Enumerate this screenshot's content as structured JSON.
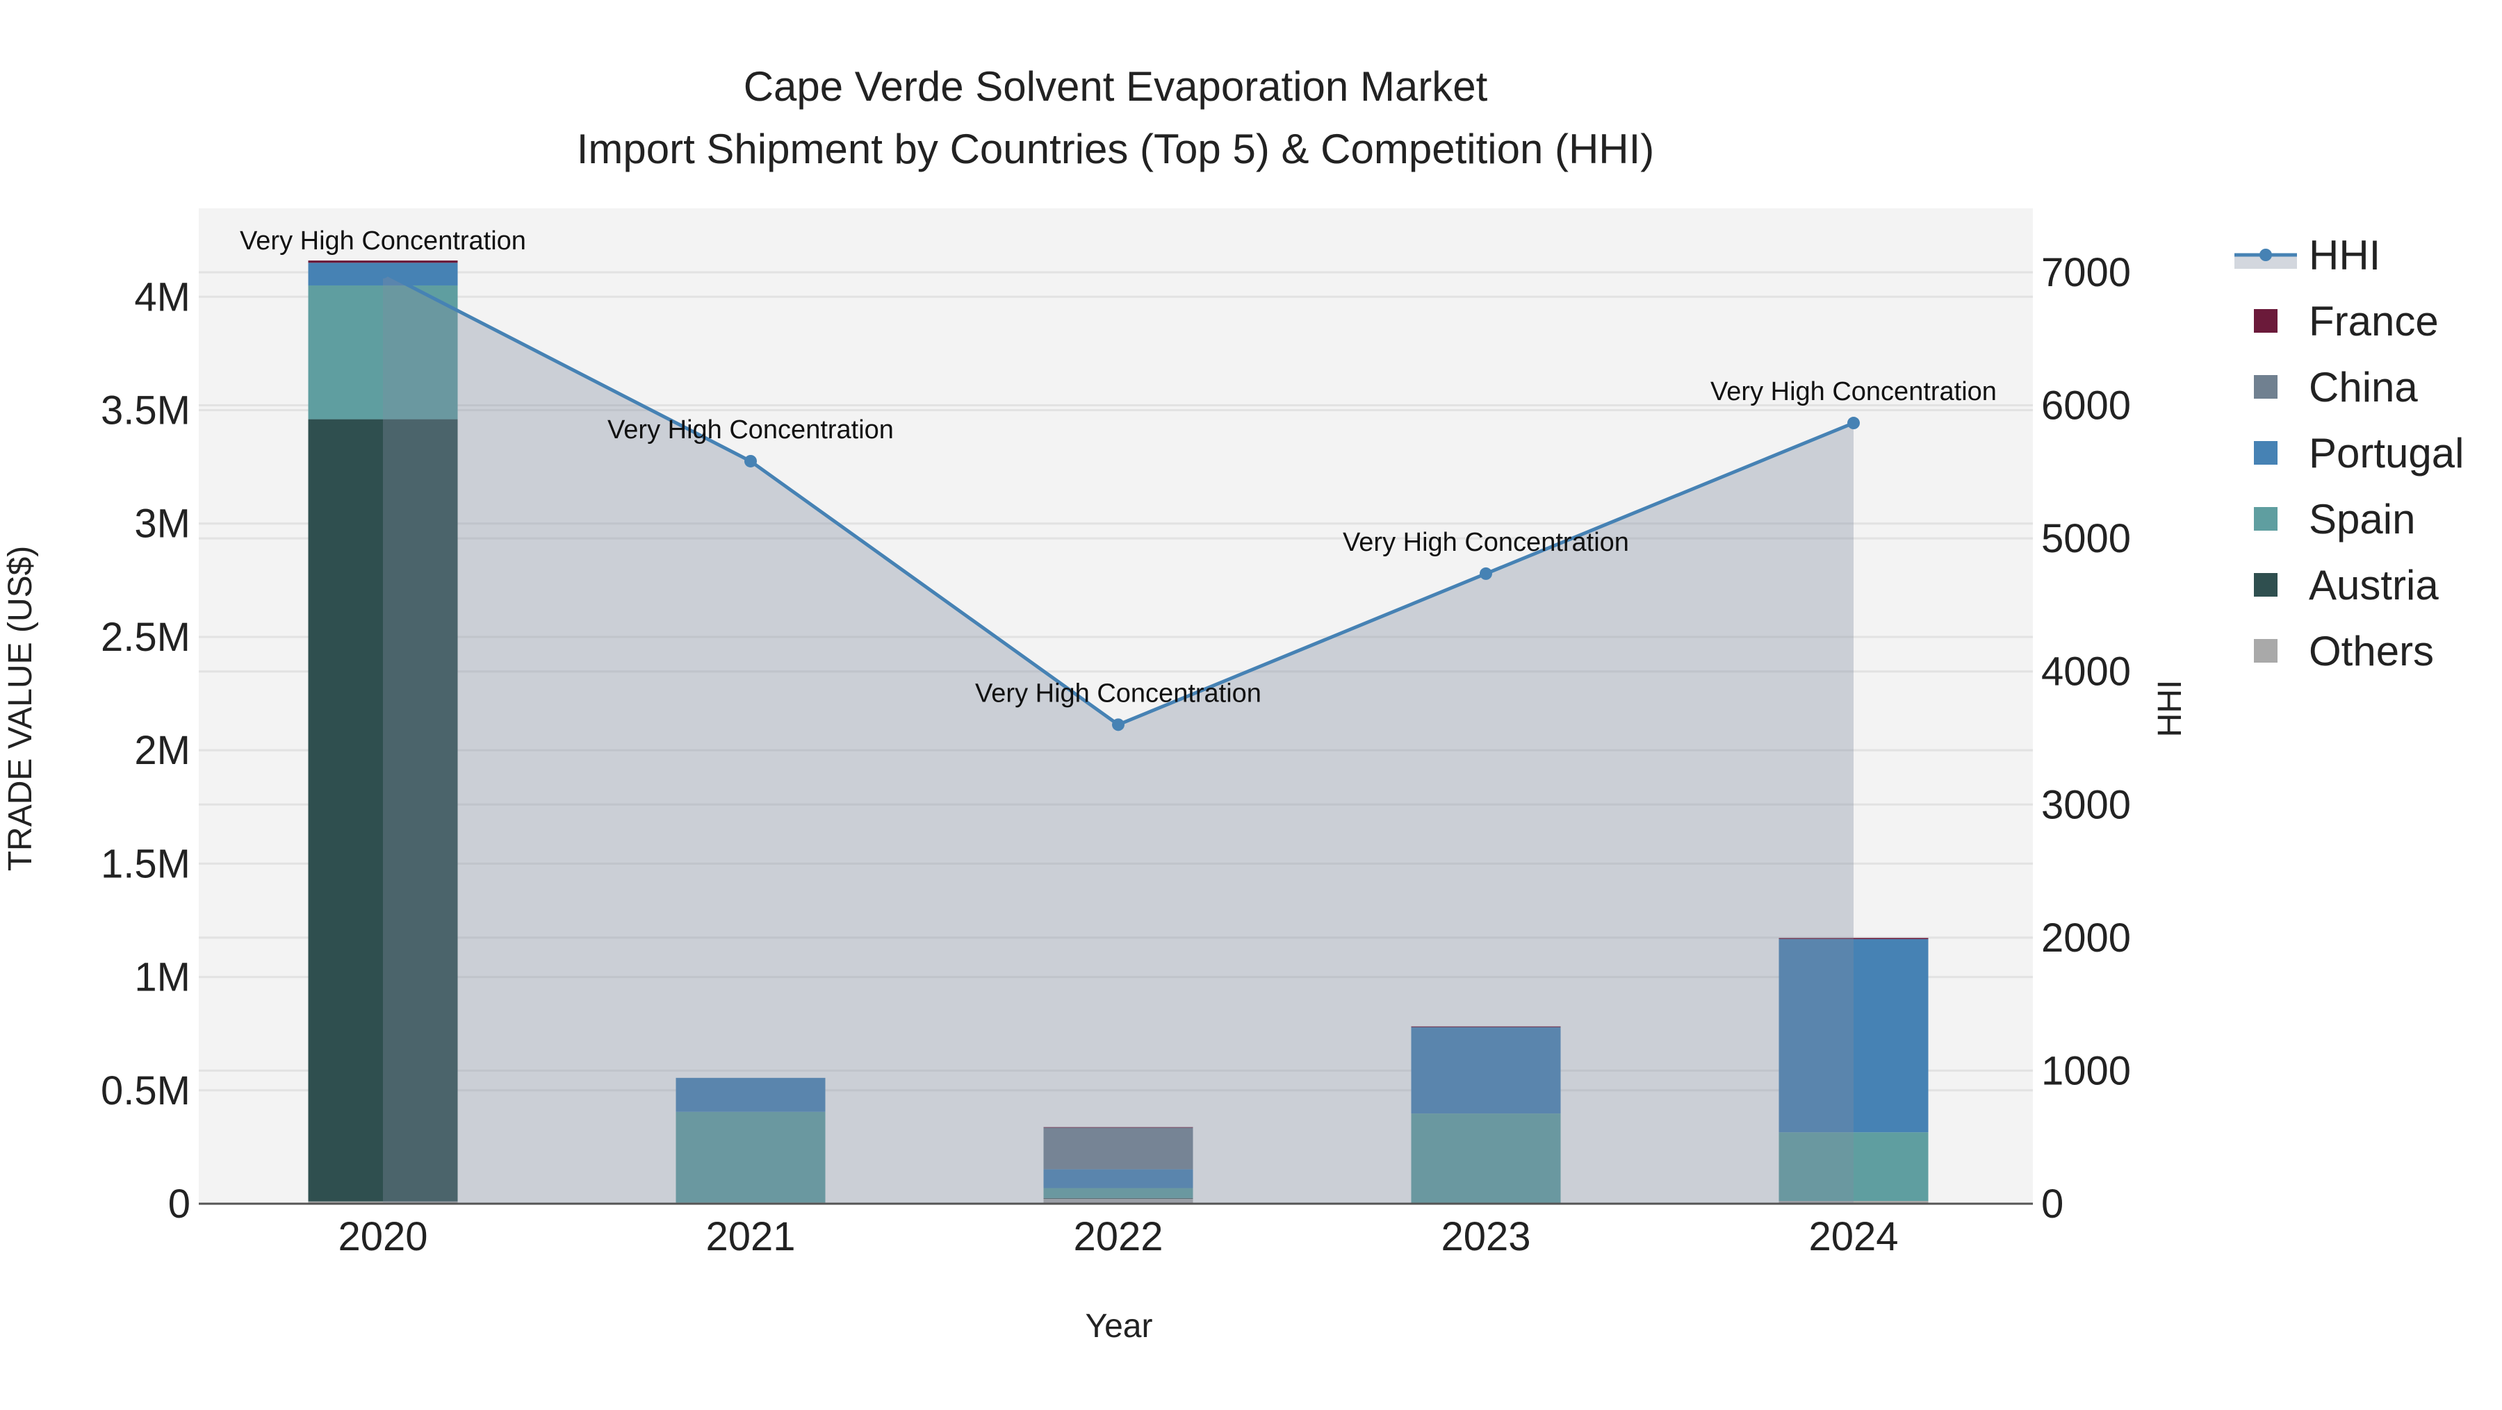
{
  "chart_data": {
    "type": "bar",
    "title": "Cape Verde Solvent Evaporation Market",
    "subtitle": "Import Shipment by Countries (Top 5) & Competition (HHI)",
    "xlabel": "Year",
    "ylabel": "TRADE VALUE (US$)",
    "y2label": "HHI",
    "categories": [
      "2020",
      "2021",
      "2022",
      "2023",
      "2024"
    ],
    "ylim": [
      0,
      4390000
    ],
    "y2lim": [
      0,
      7480
    ],
    "yticks": [
      0,
      500000,
      1000000,
      1500000,
      2000000,
      2500000,
      3000000,
      3500000,
      4000000
    ],
    "ytick_labels": [
      "0",
      "0.5M",
      "1M",
      "1.5M",
      "2M",
      "2.5M",
      "3M",
      "3.5M",
      "4M"
    ],
    "y2ticks": [
      0,
      1000,
      2000,
      3000,
      4000,
      5000,
      6000,
      7000
    ],
    "y2tick_labels": [
      "0",
      "1000",
      "2000",
      "3000",
      "4000",
      "5000",
      "6000",
      "7000"
    ],
    "grid": true,
    "legend_position": "right",
    "stack_order": [
      "Others",
      "Austria",
      "Spain",
      "Portugal",
      "China",
      "France"
    ],
    "series": [
      {
        "name": "France",
        "color": "#6b1a3a",
        "values": [
          10000,
          0,
          3000,
          4000,
          5000
        ]
      },
      {
        "name": "China",
        "color": "#708090",
        "values": [
          0,
          0,
          183000,
          0,
          0
        ]
      },
      {
        "name": "Portugal",
        "color": "#4682b4",
        "values": [
          100000,
          150000,
          83000,
          380000,
          852000
        ]
      },
      {
        "name": "Spain",
        "color": "#5f9ea0",
        "values": [
          590000,
          400000,
          44000,
          394000,
          303000
        ]
      },
      {
        "name": "Austria",
        "color": "#2f4f4f",
        "values": [
          3450000,
          0,
          2000,
          0,
          0
        ]
      },
      {
        "name": "Others",
        "color": "#a9a9a9",
        "values": [
          10000,
          5000,
          23000,
          4000,
          12000
        ]
      }
    ],
    "hhi": {
      "name": "HHI",
      "color": "#4682b4",
      "values": [
        7000,
        5580,
        3600,
        4735,
        5867
      ],
      "annotations": [
        "Very High Concentration",
        "Very High Concentration",
        "Very High Concentration",
        "Very High Concentration",
        "Very High Concentration"
      ]
    }
  }
}
